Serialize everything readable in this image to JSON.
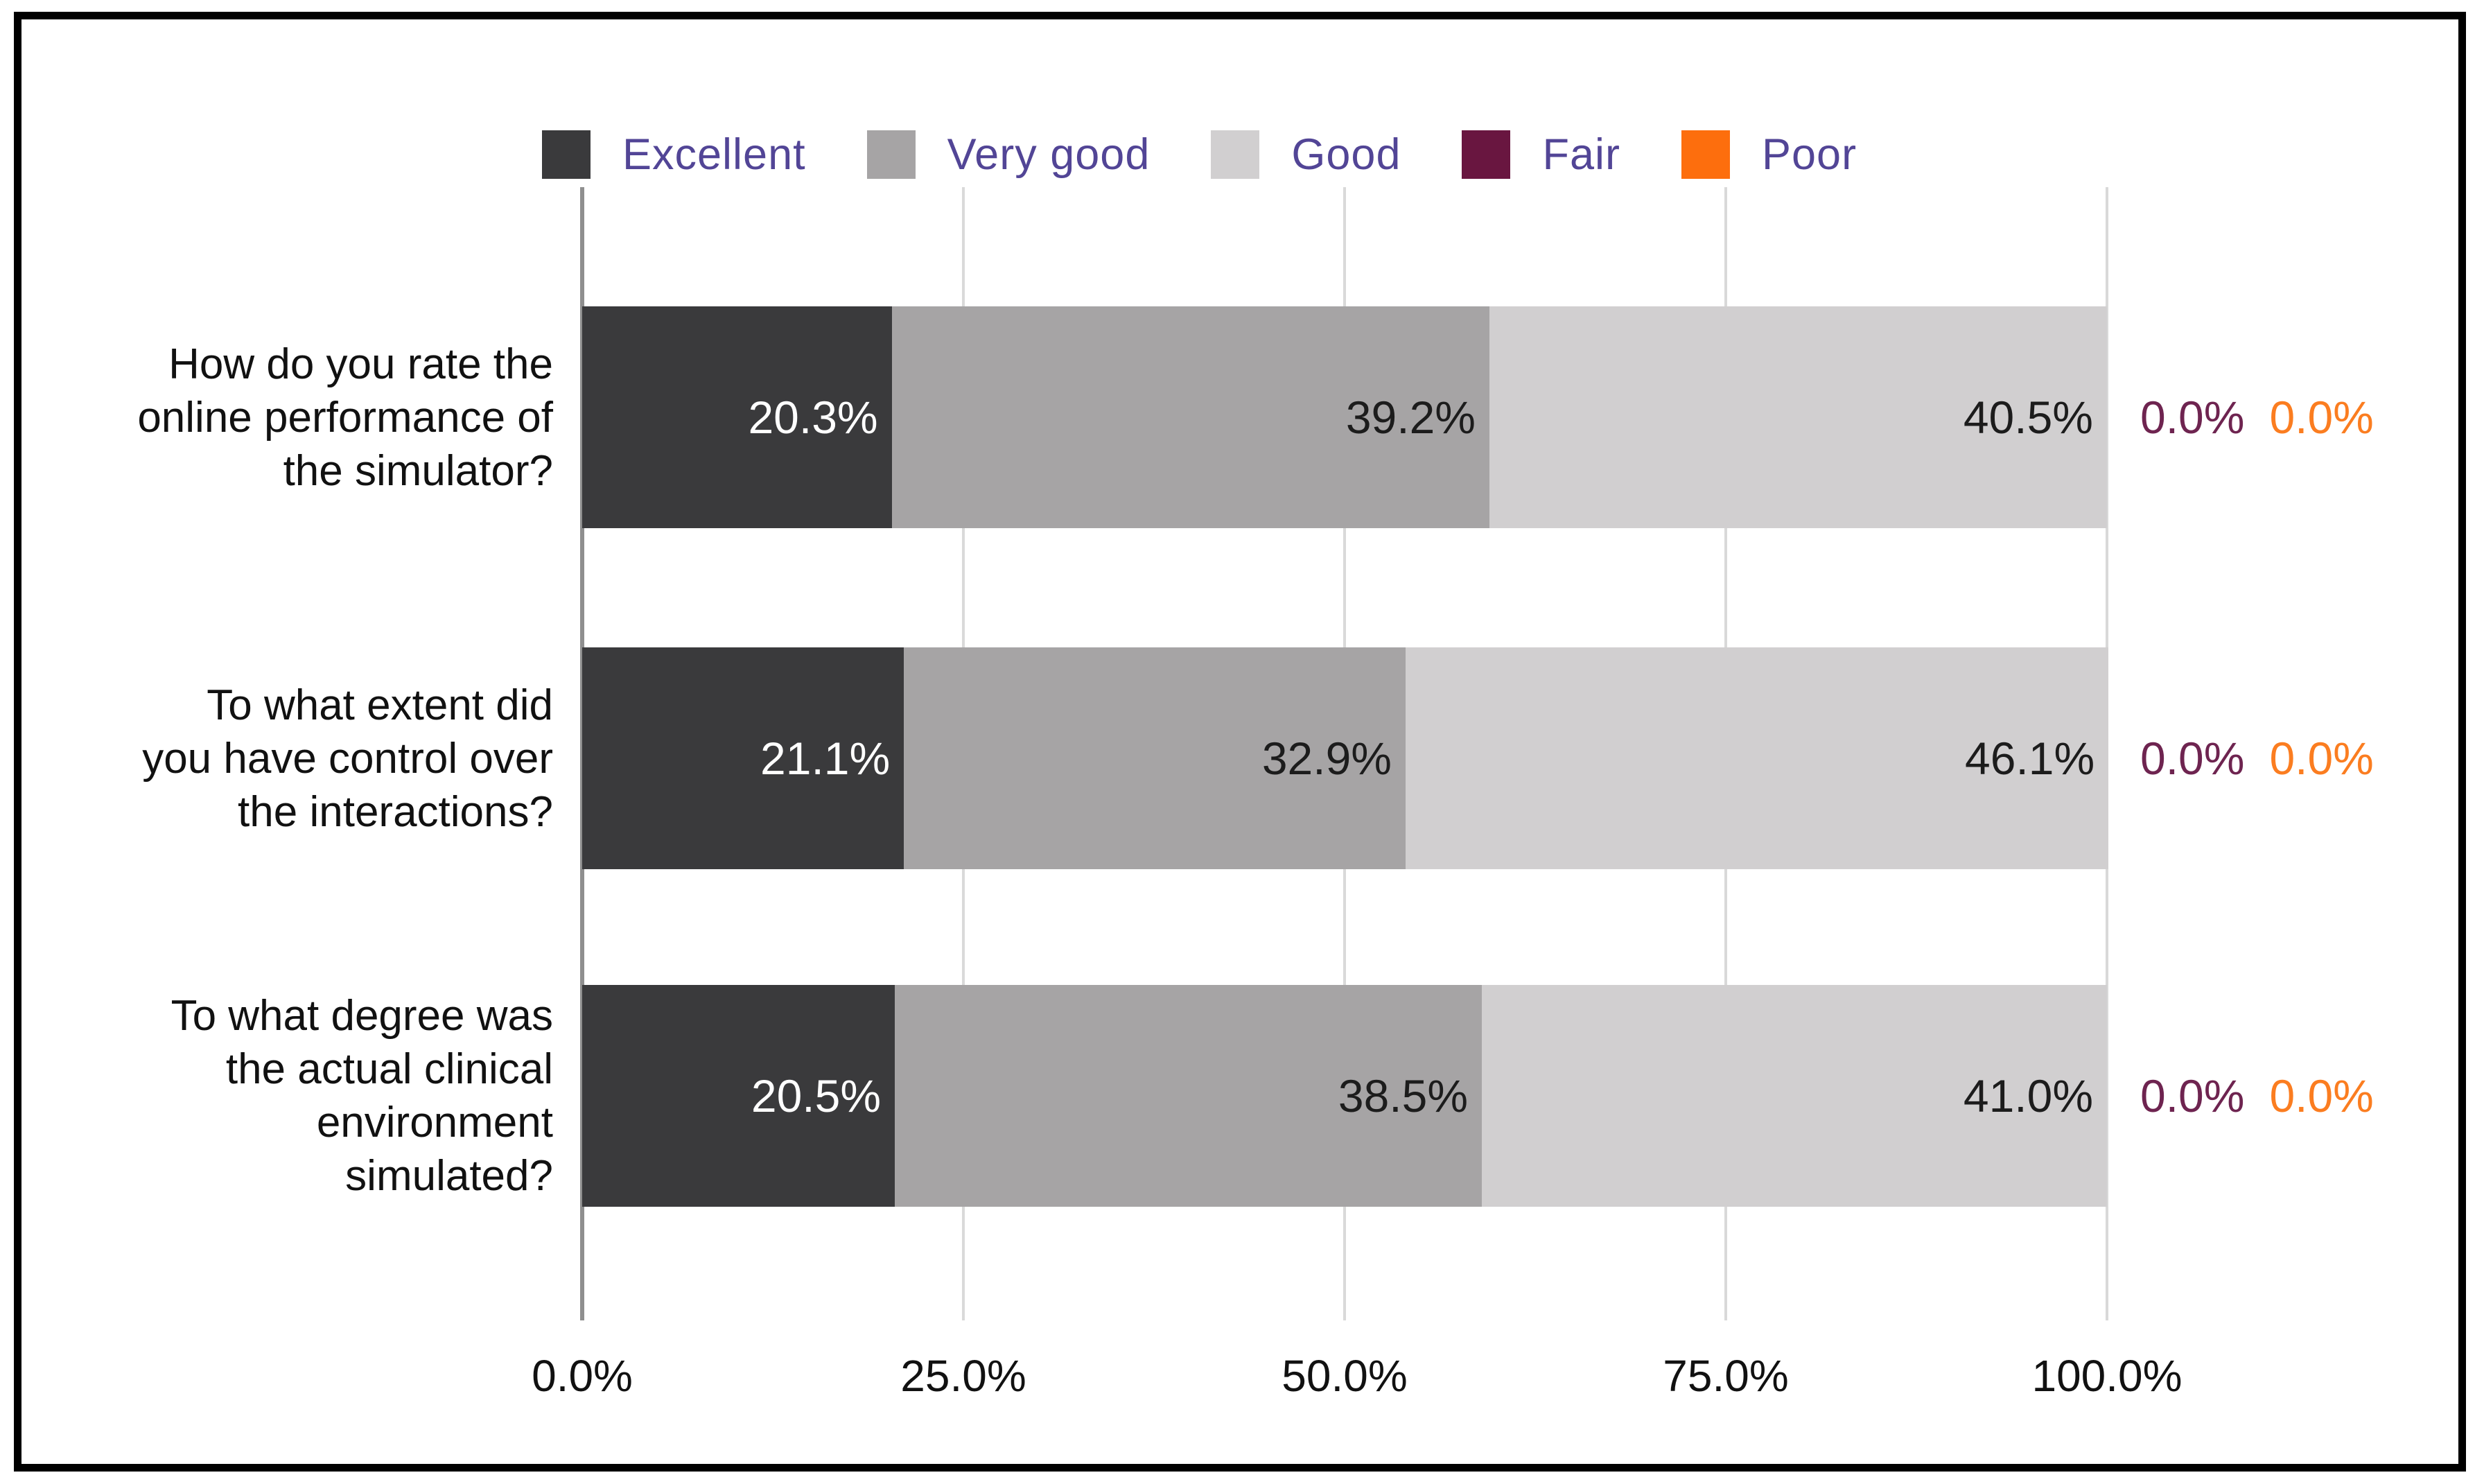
{
  "chart_data": {
    "type": "bar",
    "orientation": "horizontal",
    "stacked": true,
    "title": "",
    "xlabel": "",
    "ylabel": "",
    "xlim": [
      0,
      100
    ],
    "grid": true,
    "legend_position": "top",
    "x_axis": {
      "tick_values": [
        0,
        25,
        50,
        75,
        100
      ],
      "tick_labels": [
        "0.0%",
        "25.0%",
        "50.0%",
        "75.0%",
        "100.0%"
      ]
    },
    "categories": [
      {
        "lines": [
          "How do you rate the",
          "online performance of",
          "the simulator?"
        ]
      },
      {
        "lines": [
          "To what extent did",
          "you have control over",
          "the interactions?"
        ]
      },
      {
        "lines": [
          "To what degree was",
          "the actual clinical",
          "environment",
          "simulated?"
        ]
      }
    ],
    "series": [
      {
        "name": "Excellent",
        "color": "#3a3a3c",
        "value_label_color": "#ffffff",
        "values": [
          20.3,
          21.1,
          20.5
        ]
      },
      {
        "name": "Very good",
        "color": "#a6a4a5",
        "value_label_color": "#1c1c1c",
        "values": [
          39.2,
          32.9,
          38.5
        ]
      },
      {
        "name": "Good",
        "color": "#d1cfd0",
        "value_label_color": "#1c1c1c",
        "values": [
          40.5,
          46.1,
          41.0
        ]
      },
      {
        "name": "Fair",
        "color": "#691640",
        "value_label_color": "#6e2450",
        "values": [
          0.0,
          0.0,
          0.0
        ]
      },
      {
        "name": "Poor",
        "color": "#fd6e0d",
        "value_label_color": "#fb7d20",
        "values": [
          0.0,
          0.0,
          0.0
        ]
      }
    ]
  },
  "colors": {
    "frame_border": "#000000",
    "legend_text": "#524596",
    "axis_zero_line": "#8f8f8f",
    "gridline": "#d9d9d9",
    "text": "#111111",
    "background": "#ffffff"
  }
}
